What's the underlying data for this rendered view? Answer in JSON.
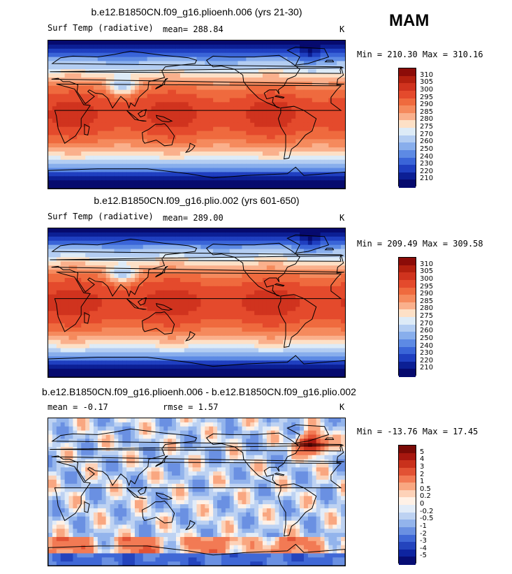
{
  "season": "MAM",
  "panels": [
    {
      "title": "b.e12.B1850CN.f09_g16.plioenh.006 (yrs 21-30)",
      "left": "Surf Temp (radiative)",
      "center": "mean= 288.84",
      "units": "K",
      "minmax": "Min = 210.30 Max = 310.16",
      "kind": "abs",
      "labels": [
        "310",
        "305",
        "300",
        "295",
        "290",
        "285",
        "280",
        "275",
        "270",
        "260",
        "250",
        "240",
        "230",
        "220",
        "210"
      ]
    },
    {
      "title": "b.e12.B1850CN.f09_g16.plio.002 (yrs 601-650)",
      "left": "Surf Temp (radiative)",
      "center": "mean= 289.00",
      "units": "K",
      "minmax": "Min = 209.49 Max = 309.58",
      "kind": "abs",
      "labels": [
        "310",
        "305",
        "300",
        "295",
        "290",
        "285",
        "280",
        "275",
        "270",
        "260",
        "250",
        "240",
        "230",
        "220",
        "210"
      ]
    },
    {
      "title": "b.e12.B1850CN.f09_g16.plioenh.006 - b.e12.B1850CN.f09_g16.plio.002",
      "left": "mean =  -0.17",
      "center": "rmse =  1.57",
      "units": "K",
      "minmax": "Min = -13.76 Max =  17.45",
      "kind": "diff",
      "labels": [
        "5",
        "4",
        "3",
        "2",
        "1",
        "0.5",
        "0.2",
        "0",
        "-0.2",
        "-0.5",
        "-1",
        "-2",
        "-3",
        "-4",
        "-5"
      ]
    }
  ],
  "colors": {
    "abs": [
      "#8c0c08",
      "#b3200f",
      "#d0331e",
      "#e44a2c",
      "#ef6a3e",
      "#f58a5d",
      "#fab08c",
      "#fde0c6",
      "#ddebf7",
      "#b3cdf2",
      "#88aeec",
      "#5d8ae4",
      "#3a65d8",
      "#1f3fc0",
      "#0c1f94",
      "#060a6e"
    ],
    "diff": [
      "#7a0a06",
      "#a7170f",
      "#c9311c",
      "#e25234",
      "#f27a54",
      "#f9a781",
      "#fdd2b8",
      "#fff1e6",
      "#e2ecf8",
      "#bdd2f2",
      "#93b4ec",
      "#6a90e2",
      "#4068d6",
      "#2444bd",
      "#0e24a0",
      "#070d74"
    ]
  }
}
